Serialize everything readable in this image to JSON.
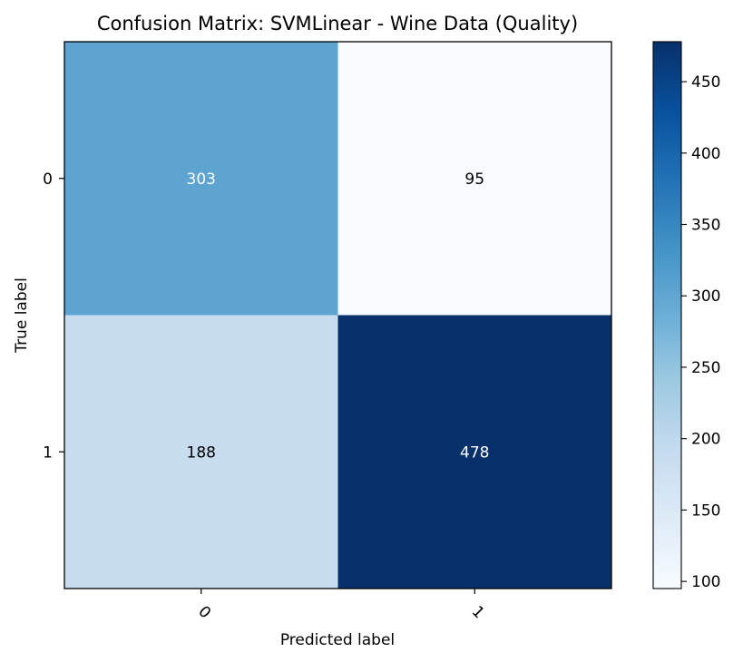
{
  "chart_data": {
    "type": "heatmap",
    "title": "Confusion Matrix: SVMLinear - Wine Data (Quality)",
    "xlabel": "Predicted label",
    "ylabel": "True label",
    "x_categories": [
      "0",
      "1"
    ],
    "y_categories": [
      "0",
      "1"
    ],
    "values": [
      [
        303,
        95
      ],
      [
        188,
        478
      ]
    ],
    "colormap": "Blues",
    "color_range": [
      95,
      478
    ],
    "colorbar_ticks": [
      100,
      150,
      200,
      250,
      300,
      350,
      400,
      450
    ],
    "x_tick_rotation_deg": 45,
    "text_color_threshold": 286.5,
    "light_text_color": "#ffffff",
    "dark_text_color": "#000000"
  }
}
